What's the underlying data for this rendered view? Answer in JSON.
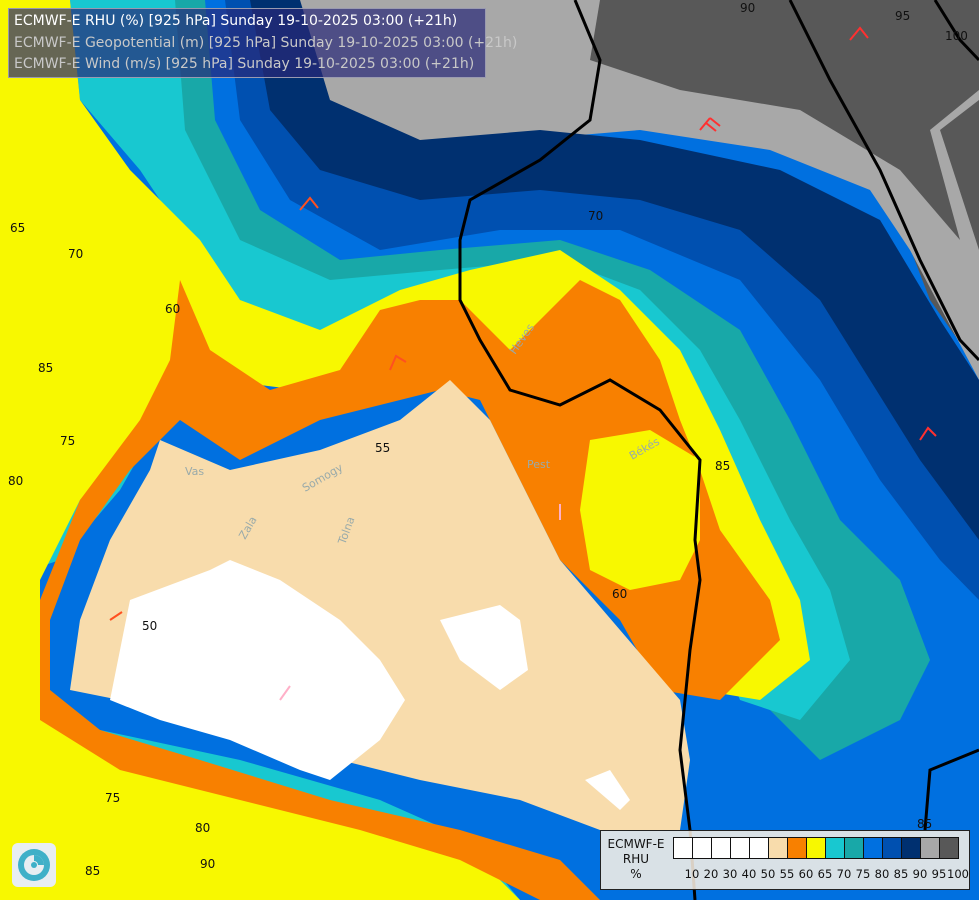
{
  "header": {
    "lines": [
      "ECMWF-E RHU (%) [925 hPa] Sunday 19-10-2025 03:00 (+21h)",
      "ECMWF-E Geopotential (m) [925 hPa] Sunday 19-10-2025 03:00 (+21h)",
      "ECMWF-E Wind (m/s) [925 hPa] Sunday 19-10-2025 03:00 (+21h)"
    ]
  },
  "legend": {
    "title_line1": "ECMWF-E",
    "title_line2": "RHU",
    "unit": "%",
    "ticks": [
      "10",
      "20",
      "30",
      "40",
      "50",
      "55",
      "60",
      "65",
      "70",
      "75",
      "80",
      "85",
      "90",
      "95",
      "100"
    ],
    "colors": [
      "#ffffff",
      "#ffffff",
      "#ffffff",
      "#ffffff",
      "#ffffff",
      "#f8dcac",
      "#f88000",
      "#f8f800",
      "#18c8d0",
      "#18a8a8",
      "#0070e0",
      "#0050b0",
      "#003070",
      "#a8a8a8",
      "#585858"
    ]
  },
  "contour_labels": [
    "90",
    "95",
    "100",
    "65",
    "70",
    "60",
    "85",
    "75",
    "80",
    "55",
    "50",
    "60",
    "85",
    "70",
    "75",
    "80",
    "85",
    "90",
    "85"
  ],
  "region_labels": [
    "Vas",
    "Zala",
    "Somogy",
    "Tolna",
    "Heves",
    "Pest",
    "Békés"
  ],
  "logo": "ECMWF logo"
}
